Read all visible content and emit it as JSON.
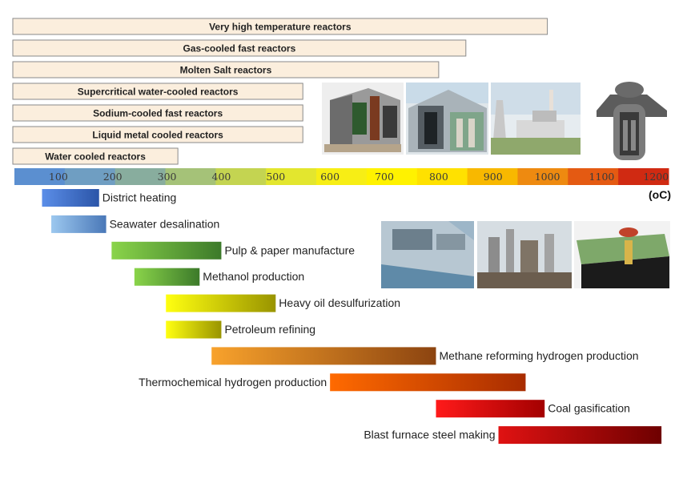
{
  "chart_data": {
    "type": "bar",
    "unit": "(oC)",
    "xlim": [
      0,
      1200
    ],
    "ticks": [
      100,
      200,
      300,
      400,
      500,
      600,
      700,
      800,
      900,
      1000,
      1100,
      1200
    ],
    "scale_colors": [
      "#5b8fd0",
      "#6f9ec2",
      "#88ad9e",
      "#a5c278",
      "#c4d451",
      "#e3e62e",
      "#f7ee15",
      "#fff200",
      "#ffe100",
      "#f8b800",
      "#ee8a10",
      "#e45a12",
      "#d02a12"
    ],
    "reactors": [
      {
        "label": "Very high temperature reactors",
        "max": 1000
      },
      {
        "label": "Gas-cooled fast reactors",
        "max": 850
      },
      {
        "label": "Molten Salt reactors",
        "max": 800
      },
      {
        "label": "Supercritical water-cooled reactors",
        "max": 550
      },
      {
        "label": "Sodium-cooled fast reactors",
        "max": 550
      },
      {
        "label": "Liquid metal cooled reactors",
        "max": 550
      },
      {
        "label": "Water cooled reactors",
        "max": 320
      }
    ],
    "applications": [
      {
        "label": "District heating",
        "start": 70,
        "end": 175,
        "label_side": "right",
        "colors": [
          "#5b8ee8",
          "#2b55a8"
        ]
      },
      {
        "label": "Seawater desalination",
        "start": 87,
        "end": 188,
        "label_side": "right",
        "colors": [
          "#9cc8ef",
          "#4a78b8"
        ]
      },
      {
        "label": "Pulp & paper manufacture",
        "start": 198,
        "end": 400,
        "label_side": "right",
        "colors": [
          "#8ad44a",
          "#3c7a2a"
        ]
      },
      {
        "label": "Methanol production",
        "start": 240,
        "end": 360,
        "label_side": "right",
        "colors": [
          "#8ad44a",
          "#3c7a2a"
        ]
      },
      {
        "label": "Heavy oil desulfurization",
        "start": 298,
        "end": 500,
        "label_side": "right",
        "colors": [
          "#ffff10",
          "#999400"
        ]
      },
      {
        "label": "Petroleum refining",
        "start": 298,
        "end": 400,
        "label_side": "right",
        "colors": [
          "#ffff10",
          "#999400"
        ]
      },
      {
        "label": "Methane reforming hydrogen production",
        "start": 382,
        "end": 795,
        "label_side": "right",
        "colors": [
          "#f8a22c",
          "#8c4410"
        ]
      },
      {
        "label": "Thermochemical hydrogen production",
        "start": 600,
        "end": 960,
        "label_side": "left",
        "colors": [
          "#ff6a00",
          "#a82c00"
        ]
      },
      {
        "label": "Coal gasification",
        "start": 795,
        "end": 995,
        "label_side": "right",
        "colors": [
          "#ff1a1a",
          "#a30000"
        ]
      },
      {
        "label": "Blast furnace steel making",
        "start": 910,
        "end": 1210,
        "label_side": "left",
        "colors": [
          "#e01212",
          "#6e0000"
        ]
      }
    ]
  }
}
